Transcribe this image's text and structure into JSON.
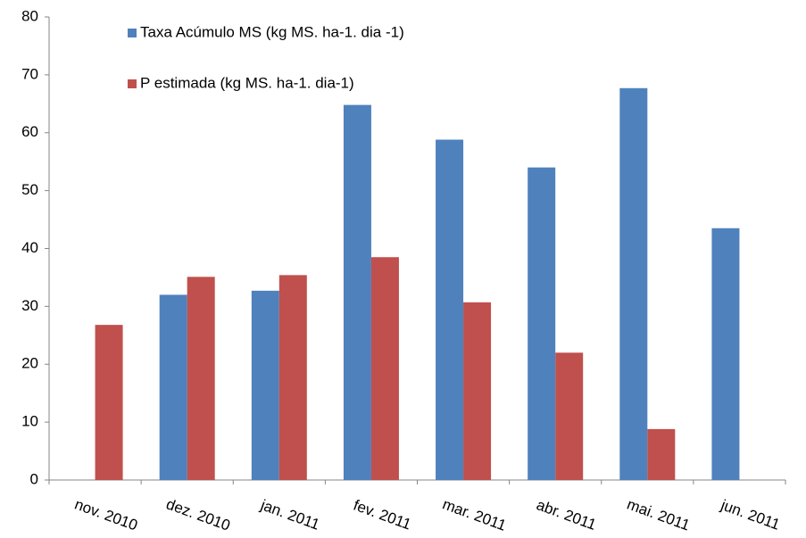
{
  "chart_data": {
    "type": "bar",
    "categories": [
      "nov. 2010",
      "dez. 2010",
      "jan. 2011",
      "fev. 2011",
      "mar. 2011",
      "abr. 2011",
      "mai. 2011",
      "jun. 2011"
    ],
    "series": [
      {
        "name": "Taxa Acúmulo MS (kg MS. ha-1. dia -1)",
        "color": "#4f81bd",
        "values": [
          null,
          32,
          32.7,
          64.8,
          58.8,
          54,
          67.7,
          43.5
        ]
      },
      {
        "name": "P estimada (kg MS. ha-1. dia-1)",
        "color": "#c0504d",
        "values": [
          26.8,
          35.1,
          35.4,
          38.5,
          30.7,
          22,
          8.8,
          null
        ]
      }
    ],
    "ylim": [
      0,
      80
    ],
    "yticks": [
      0,
      10,
      20,
      30,
      40,
      50,
      60,
      70,
      80
    ],
    "grid": false,
    "legend": "top"
  }
}
